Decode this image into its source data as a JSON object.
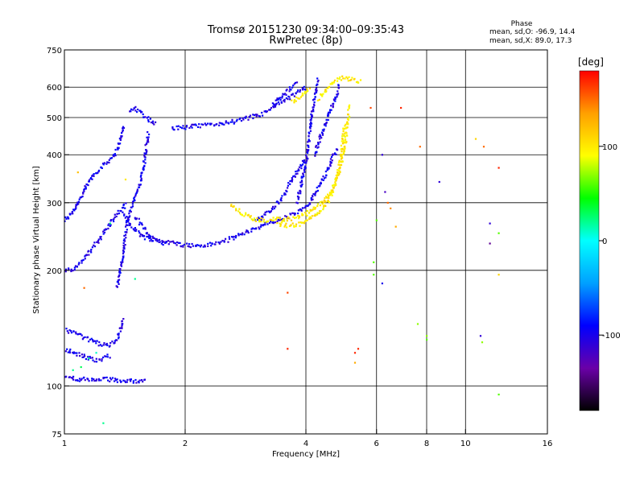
{
  "title": {
    "line1": "Tromsø 20151230 09:34:00–09:35:43",
    "line2": "RwPretec (8p)"
  },
  "phase_stats": {
    "heading": "Phase",
    "o_line": "mean, sd,O: -96.9, 14.4",
    "x_line": "mean, sd,X:  89.0, 17.3"
  },
  "colorbar": {
    "label": "[deg]",
    "ticks": [
      {
        "value": 100,
        "label": "100"
      },
      {
        "value": 0,
        "label": "0"
      },
      {
        "value": -100,
        "label": "-100"
      }
    ],
    "range": [
      -180,
      180
    ],
    "colors": [
      "#000000",
      "#6a00a8",
      "#0000ff",
      "#00a0ff",
      "#00ffff",
      "#00ff00",
      "#ffff00",
      "#ffa000",
      "#ff0000"
    ]
  },
  "chart_data": {
    "type": "scatter",
    "title": "Tromsø 20151230 09:34:00–09:35:43",
    "subtitle": "RwPretec (8p)",
    "xlabel": "Frequency [MHz]",
    "ylabel": "Stationary phase Virtual Height [km]",
    "x_scale": "log",
    "y_scale": "log",
    "xlim": [
      1,
      16
    ],
    "ylim": [
      75,
      750
    ],
    "x_ticks": [
      {
        "value": 1,
        "label": "1"
      },
      {
        "value": 2,
        "label": "2"
      },
      {
        "value": 4,
        "label": "4"
      },
      {
        "value": 6,
        "label": "6"
      },
      {
        "value": 8,
        "label": "8"
      },
      {
        "value": 10,
        "label": "10"
      },
      {
        "value": 16,
        "label": "16"
      }
    ],
    "y_ticks": [
      {
        "value": 75,
        "label": "75"
      },
      {
        "value": 100,
        "label": "100"
      },
      {
        "value": 200,
        "label": "200"
      },
      {
        "value": 300,
        "label": "300"
      },
      {
        "value": 400,
        "label": "400"
      },
      {
        "value": 500,
        "label": "500"
      },
      {
        "value": 600,
        "label": "600"
      },
      {
        "value": 750,
        "label": "750"
      }
    ],
    "grid_x": [
      2,
      4,
      6,
      8,
      10
    ],
    "grid_y": [
      100,
      200,
      300,
      400,
      500,
      600
    ],
    "grid": true,
    "color_by": "phase [deg]",
    "traces": [
      {
        "phase": -100,
        "points": [
          [
            1.0,
            270
          ],
          [
            1.02,
            275
          ],
          [
            1.04,
            282
          ],
          [
            1.06,
            290
          ],
          [
            1.08,
            300
          ],
          [
            1.1,
            312
          ],
          [
            1.13,
            328
          ],
          [
            1.16,
            345
          ],
          [
            1.2,
            360
          ],
          [
            1.25,
            375
          ],
          [
            1.3,
            390
          ],
          [
            1.35,
            410
          ],
          [
            1.38,
            440
          ],
          [
            1.41,
            475
          ]
        ]
      },
      {
        "phase": -100,
        "points": [
          [
            1.45,
            520
          ],
          [
            1.5,
            530
          ],
          [
            1.55,
            515
          ],
          [
            1.6,
            500
          ],
          [
            1.65,
            490
          ],
          [
            1.7,
            480
          ]
        ]
      },
      {
        "phase": -100,
        "points": [
          [
            1.0,
            200
          ],
          [
            1.05,
            202
          ],
          [
            1.1,
            210
          ],
          [
            1.15,
            222
          ],
          [
            1.2,
            235
          ],
          [
            1.25,
            250
          ],
          [
            1.3,
            265
          ],
          [
            1.35,
            280
          ],
          [
            1.4,
            290
          ],
          [
            1.42,
            300
          ]
        ]
      },
      {
        "phase": -100,
        "points": [
          [
            1.4,
            280
          ],
          [
            1.45,
            265
          ],
          [
            1.5,
            255
          ],
          [
            1.55,
            248
          ],
          [
            1.6,
            243
          ],
          [
            1.7,
            240
          ],
          [
            1.8,
            237
          ],
          [
            1.9,
            235
          ],
          [
            2.0,
            233
          ],
          [
            2.1,
            232
          ],
          [
            2.2,
            232
          ],
          [
            2.35,
            234
          ],
          [
            2.5,
            238
          ],
          [
            2.6,
            242
          ],
          [
            2.8,
            250
          ],
          [
            3.0,
            258
          ],
          [
            3.2,
            264
          ],
          [
            3.4,
            270
          ],
          [
            3.6,
            276
          ],
          [
            3.8,
            283
          ],
          [
            4.0,
            292
          ],
          [
            4.1,
            300
          ],
          [
            4.2,
            315
          ],
          [
            4.3,
            330
          ],
          [
            4.4,
            345
          ],
          [
            4.5,
            360
          ],
          [
            4.6,
            380
          ],
          [
            4.7,
            400
          ],
          [
            4.8,
            420
          ]
        ]
      },
      {
        "phase": -100,
        "points": [
          [
            1.5,
            275
          ],
          [
            1.55,
            265
          ],
          [
            1.6,
            252
          ],
          [
            1.65,
            243
          ],
          [
            1.7,
            238
          ],
          [
            1.8,
            235
          ]
        ]
      },
      {
        "phase": -100,
        "points": [
          [
            1.0,
            140
          ],
          [
            1.05,
            138
          ],
          [
            1.1,
            135
          ],
          [
            1.15,
            132
          ],
          [
            1.2,
            130
          ],
          [
            1.25,
            128
          ],
          [
            1.3,
            128
          ],
          [
            1.35,
            132
          ],
          [
            1.38,
            140
          ],
          [
            1.4,
            150
          ]
        ]
      },
      {
        "phase": -100,
        "points": [
          [
            1.0,
            125
          ],
          [
            1.05,
            122
          ],
          [
            1.1,
            120
          ],
          [
            1.15,
            118
          ],
          [
            1.2,
            117
          ],
          [
            1.25,
            118
          ],
          [
            1.3,
            120
          ]
        ]
      },
      {
        "phase": -100,
        "points": [
          [
            1.0,
            105
          ],
          [
            1.05,
            105
          ],
          [
            1.1,
            104
          ],
          [
            1.2,
            104
          ],
          [
            1.3,
            104
          ],
          [
            1.4,
            103
          ],
          [
            1.5,
            103
          ],
          [
            1.6,
            104
          ]
        ]
      },
      {
        "phase": -100,
        "points": [
          [
            1.35,
            180
          ],
          [
            1.38,
            200
          ],
          [
            1.4,
            220
          ],
          [
            1.42,
            250
          ],
          [
            1.45,
            280
          ],
          [
            1.5,
            310
          ],
          [
            1.55,
            340
          ],
          [
            1.58,
            380
          ],
          [
            1.6,
            420
          ],
          [
            1.62,
            460
          ]
        ]
      },
      {
        "phase": -100,
        "points": [
          [
            1.85,
            470
          ],
          [
            1.9,
            470
          ],
          [
            2.0,
            472
          ],
          [
            2.1,
            474
          ],
          [
            2.2,
            476
          ],
          [
            2.35,
            480
          ],
          [
            2.5,
            484
          ],
          [
            2.7,
            490
          ],
          [
            2.9,
            500
          ],
          [
            3.1,
            510
          ],
          [
            3.3,
            530
          ],
          [
            3.5,
            550
          ],
          [
            3.7,
            570
          ],
          [
            3.9,
            590
          ],
          [
            4.0,
            600
          ]
        ]
      },
      {
        "phase": -100,
        "points": [
          [
            3.3,
            540
          ],
          [
            3.4,
            555
          ],
          [
            3.5,
            570
          ],
          [
            3.6,
            585
          ],
          [
            3.7,
            600
          ],
          [
            3.8,
            615
          ]
        ]
      },
      {
        "phase": -100,
        "points": [
          [
            3.8,
            300
          ],
          [
            3.9,
            340
          ],
          [
            4.0,
            380
          ],
          [
            4.05,
            420
          ],
          [
            4.1,
            470
          ],
          [
            4.15,
            520
          ],
          [
            4.2,
            560
          ],
          [
            4.25,
            600
          ],
          [
            4.3,
            630
          ]
        ]
      },
      {
        "phase": -100,
        "points": [
          [
            4.2,
            400
          ],
          [
            4.3,
            430
          ],
          [
            4.4,
            460
          ],
          [
            4.5,
            490
          ],
          [
            4.6,
            520
          ],
          [
            4.7,
            550
          ],
          [
            4.8,
            580
          ],
          [
            4.85,
            610
          ]
        ]
      },
      {
        "phase": -100,
        "points": [
          [
            3.6,
            330
          ],
          [
            3.7,
            345
          ],
          [
            3.8,
            360
          ],
          [
            3.9,
            375
          ],
          [
            4.0,
            390
          ]
        ]
      },
      {
        "phase": -100,
        "points": [
          [
            3.0,
            270
          ],
          [
            3.1,
            275
          ],
          [
            3.2,
            282
          ],
          [
            3.3,
            290
          ],
          [
            3.4,
            300
          ],
          [
            3.5,
            312
          ],
          [
            3.6,
            325
          ]
        ]
      },
      {
        "phase": 100,
        "points": [
          [
            2.6,
            295
          ],
          [
            2.75,
            283
          ],
          [
            2.9,
            275
          ],
          [
            3.0,
            270
          ],
          [
            3.2,
            270
          ],
          [
            3.4,
            272
          ],
          [
            3.6,
            272
          ],
          [
            3.8,
            275
          ],
          [
            4.0,
            280
          ],
          [
            4.2,
            290
          ],
          [
            4.4,
            300
          ],
          [
            4.6,
            320
          ],
          [
            4.8,
            350
          ],
          [
            4.9,
            380
          ],
          [
            5.0,
            420
          ],
          [
            5.05,
            460
          ],
          [
            5.1,
            500
          ],
          [
            5.12,
            540
          ]
        ]
      },
      {
        "phase": 100,
        "points": [
          [
            3.4,
            265
          ],
          [
            3.6,
            262
          ],
          [
            3.8,
            263
          ],
          [
            4.0,
            268
          ],
          [
            4.2,
            278
          ],
          [
            4.4,
            290
          ],
          [
            4.55,
            305
          ],
          [
            4.7,
            330
          ],
          [
            4.8,
            360
          ],
          [
            4.9,
            400
          ],
          [
            4.95,
            440
          ],
          [
            5.0,
            480
          ]
        ]
      },
      {
        "phase": 100,
        "points": [
          [
            4.3,
            560
          ],
          [
            4.4,
            575
          ],
          [
            4.5,
            590
          ],
          [
            4.6,
            605
          ],
          [
            4.7,
            620
          ],
          [
            4.8,
            630
          ],
          [
            5.0,
            635
          ],
          [
            5.2,
            630
          ],
          [
            5.4,
            620
          ],
          [
            5.5,
            625
          ]
        ]
      },
      {
        "phase": 100,
        "points": [
          [
            3.7,
            550
          ],
          [
            3.8,
            560
          ],
          [
            3.9,
            570
          ],
          [
            4.0,
            580
          ],
          [
            4.1,
            595
          ]
        ]
      }
    ],
    "scatter_points": [
      {
        "x": 1.05,
        "y": 110,
        "phase": 20
      },
      {
        "x": 1.1,
        "y": 112,
        "phase": 30
      },
      {
        "x": 1.15,
        "y": 118,
        "phase": 20
      },
      {
        "x": 1.2,
        "y": 122,
        "phase": 10
      },
      {
        "x": 1.25,
        "y": 80,
        "phase": 20
      },
      {
        "x": 1.3,
        "y": 265,
        "phase": 20
      },
      {
        "x": 1.42,
        "y": 345,
        "phase": 100
      },
      {
        "x": 1.5,
        "y": 190,
        "phase": 20
      },
      {
        "x": 1.08,
        "y": 360,
        "phase": 120
      },
      {
        "x": 1.12,
        "y": 180,
        "phase": 150
      },
      {
        "x": 3.6,
        "y": 175,
        "phase": 160
      },
      {
        "x": 3.6,
        "y": 125,
        "phase": 170
      },
      {
        "x": 5.3,
        "y": 122,
        "phase": 170
      },
      {
        "x": 5.3,
        "y": 115,
        "phase": 130
      },
      {
        "x": 5.4,
        "y": 125,
        "phase": 170
      },
      {
        "x": 5.8,
        "y": 530,
        "phase": 160
      },
      {
        "x": 6.2,
        "y": 400,
        "phase": -110
      },
      {
        "x": 6.3,
        "y": 320,
        "phase": -120
      },
      {
        "x": 6.4,
        "y": 300,
        "phase": 150
      },
      {
        "x": 6.5,
        "y": 290,
        "phase": 140
      },
      {
        "x": 6.7,
        "y": 260,
        "phase": 130
      },
      {
        "x": 6.0,
        "y": 270,
        "phase": 60
      },
      {
        "x": 5.9,
        "y": 210,
        "phase": 60
      },
      {
        "x": 5.9,
        "y": 195,
        "phase": 60
      },
      {
        "x": 6.2,
        "y": 185,
        "phase": -100
      },
      {
        "x": 6.9,
        "y": 530,
        "phase": 170
      },
      {
        "x": 7.6,
        "y": 145,
        "phase": 70
      },
      {
        "x": 7.7,
        "y": 420,
        "phase": 150
      },
      {
        "x": 8.0,
        "y": 135,
        "phase": 70
      },
      {
        "x": 8.0,
        "y": 132,
        "phase": 60
      },
      {
        "x": 8.6,
        "y": 340,
        "phase": -110
      },
      {
        "x": 10.6,
        "y": 440,
        "phase": 110
      },
      {
        "x": 10.9,
        "y": 135,
        "phase": -110
      },
      {
        "x": 11.0,
        "y": 130,
        "phase": 70
      },
      {
        "x": 11.1,
        "y": 420,
        "phase": 150
      },
      {
        "x": 11.5,
        "y": 265,
        "phase": -110
      },
      {
        "x": 11.5,
        "y": 235,
        "phase": -140
      },
      {
        "x": 12.1,
        "y": 370,
        "phase": 170
      },
      {
        "x": 12.1,
        "y": 250,
        "phase": 60
      },
      {
        "x": 12.1,
        "y": 195,
        "phase": 110
      },
      {
        "x": 12.1,
        "y": 95,
        "phase": 60
      }
    ]
  }
}
